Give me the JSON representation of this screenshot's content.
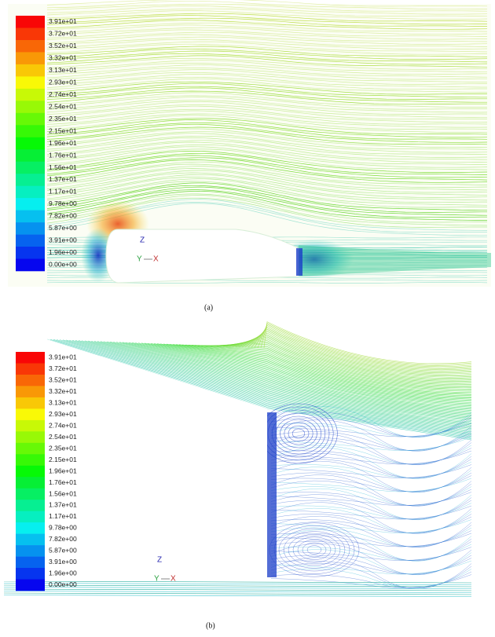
{
  "panels": [
    {
      "colorbar": {
        "labels": [
          "3.91e+01",
          "3.72e+01",
          "3.52e+01",
          "3.32e+01",
          "3.13e+01",
          "2.93e+01",
          "2.74e+01",
          "2.54e+01",
          "2.35e+01",
          "2.15e+01",
          "1.96e+01",
          "1.76e+01",
          "1.56e+01",
          "1.37e+01",
          "1.17e+01",
          "9.78e+00",
          "7.82e+00",
          "5.87e+00",
          "3.91e+00",
          "1.96e+00",
          "0.00e+00"
        ]
      },
      "axes": {
        "z": "Z",
        "y": "Y",
        "x": "X"
      },
      "caption": "(a)"
    },
    {
      "colorbar": {
        "labels": [
          "3.91e+01",
          "3.72e+01",
          "3.52e+01",
          "3.32e+01",
          "3.13e+01",
          "2.93e+01",
          "2.74e+01",
          "2.54e+01",
          "2.35e+01",
          "2.15e+01",
          "1.96e+01",
          "1.76e+01",
          "1.56e+01",
          "1.37e+01",
          "1.17e+01",
          "9.78e+00",
          "7.82e+00",
          "5.87e+00",
          "3.91e+00",
          "1.96e+00",
          "0.00e+00"
        ]
      },
      "axes": {
        "z": "Z",
        "y": "Y",
        "x": "X"
      },
      "caption": "(b)"
    }
  ]
}
